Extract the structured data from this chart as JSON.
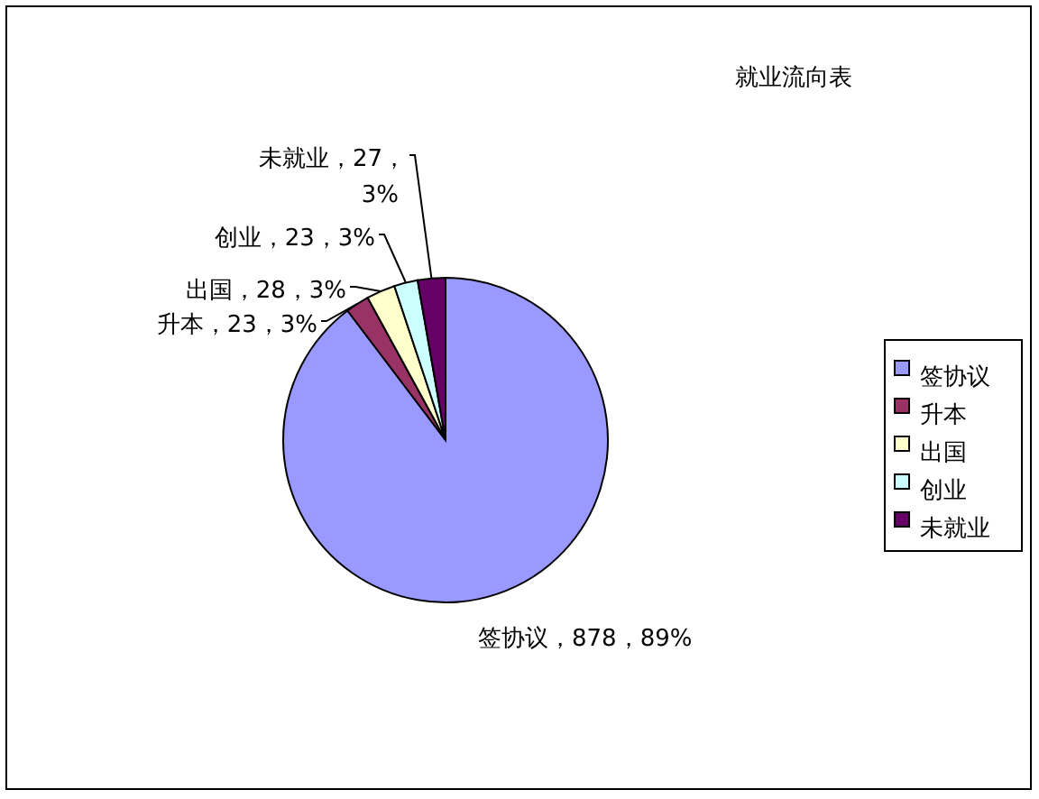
{
  "chart_data": {
    "type": "pie",
    "title": "就业流向表",
    "categories": [
      "签协议",
      "升本",
      "出国",
      "创业",
      "未就业"
    ],
    "values": [
      878,
      23,
      28,
      23,
      27
    ],
    "value_labels": [
      "签协议，878，89%",
      "升本，23，3%",
      "出国，28，3%",
      "创业，23，3%",
      "未就业，27，3%"
    ],
    "colors": [
      "#9999ff",
      "#993366",
      "#ffffcc",
      "#ccffff",
      "#660066"
    ],
    "legend": "right"
  }
}
